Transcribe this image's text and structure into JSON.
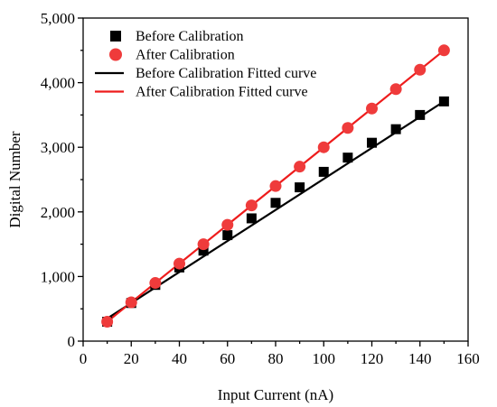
{
  "chart_data": {
    "type": "scatter",
    "title": "",
    "xlabel": "Input Current (nA)",
    "ylabel": "Digital Number",
    "xlim": [
      0,
      160
    ],
    "ylim": [
      0,
      5000
    ],
    "x_ticks": [
      0,
      20,
      40,
      60,
      80,
      100,
      120,
      140,
      160
    ],
    "y_ticks": [
      0,
      1000,
      2000,
      3000,
      4000,
      5000
    ],
    "x_tick_labels": [
      "0",
      "20",
      "40",
      "60",
      "80",
      "100",
      "120",
      "140",
      "160"
    ],
    "y_tick_labels": [
      "0",
      "1,000",
      "2,000",
      "3,000",
      "4,000",
      "5,000"
    ],
    "grid": false,
    "legend_position": "top-left",
    "x": [
      10,
      20,
      30,
      40,
      50,
      60,
      70,
      80,
      90,
      100,
      110,
      120,
      130,
      140,
      150
    ],
    "series": [
      {
        "name": "Before Calibration",
        "kind": "scatter",
        "marker": "square",
        "color": "#000000",
        "values": [
          300,
          590,
          870,
          1140,
          1400,
          1640,
          1900,
          2140,
          2380,
          2620,
          2840,
          3070,
          3280,
          3500,
          3710
        ]
      },
      {
        "name": "After Calibration",
        "kind": "scatter",
        "marker": "circle",
        "color": "#ef3b3b",
        "values": [
          300,
          600,
          900,
          1200,
          1500,
          1800,
          2100,
          2400,
          2700,
          3000,
          3300,
          3600,
          3900,
          4200,
          4500
        ]
      },
      {
        "name": "Before Calibration Fitted curve",
        "kind": "line",
        "color": "#000000",
        "x_range": [
          10,
          150
        ],
        "y_range": [
          350,
          3710
        ]
      },
      {
        "name": "After Calibration Fitted curve",
        "kind": "line",
        "color": "#ee1c1c",
        "x_range": [
          10,
          150
        ],
        "y_range": [
          300,
          4500
        ]
      }
    ]
  }
}
